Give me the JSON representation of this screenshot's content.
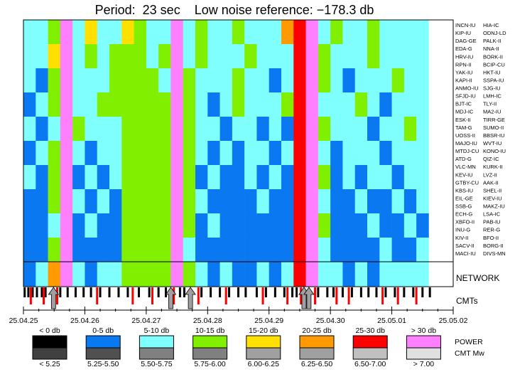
{
  "chart_data": {
    "type": "heatmap",
    "title": "Period:  23 sec    Low noise reference: −178.3 db",
    "stations_left": [
      "INCN-IU",
      "KIP-IU",
      "DAG-GE",
      "EDA-G",
      "HRV-IU",
      "RPN-II",
      "YAK-IU",
      "KAPI-II",
      "ANMO-IU",
      "SFJD-IU",
      "BJT-IC",
      "MDJ-IC",
      "ESK-II",
      "TAM-G",
      "UOSS-II",
      "MAJO-IU",
      "MTDJ-CU",
      "ATD-G",
      "VLC-MN",
      "KEV-IU",
      "GTBY-CU",
      "KBS-IU",
      "EIL-GE",
      "SSB-G",
      "ECH-G",
      "XBFO-II",
      "INU-G",
      "KIV-II",
      "SACV-II",
      "MACI-IU"
    ],
    "stations_right": [
      "HIA-IC",
      "ODNJ-LD",
      "PALK-II",
      "NNA-II",
      "BORK-II",
      "BCIP-CU",
      "HKT-IU",
      "SSPA-IU",
      "SJG-IU",
      "LMH-IC",
      "TLY-II",
      "MA2-IU",
      "TIRR-GE",
      "SUMO-II",
      "BBSR-IU",
      "WVT-IU",
      "KONO-IU",
      "QIZ-IC",
      "KURK-II",
      "LVZ-II",
      "AAK-II",
      "SHEL-II",
      "KIEV-IU",
      "MAKZ-IU",
      "LSA-IC",
      "PAB-IU",
      "RER-G",
      "BFO-II",
      "BORG-II",
      "DIVS-MN"
    ],
    "x": [
      25,
      25.2,
      25.4,
      25.6,
      25.8,
      26,
      26.2,
      26.4,
      26.6,
      26.8,
      27,
      27.2,
      27.4,
      27.6,
      27.8,
      28,
      28.2,
      28.4,
      28.6,
      28.8,
      29,
      29.2,
      29.4,
      29.6,
      29.8,
      30,
      30.2,
      30.4,
      30.6,
      30.8,
      31,
      31.2,
      31.4
    ],
    "rows": [
      [
        8,
        7,
        12,
        32,
        8,
        16,
        7,
        8,
        17,
        12,
        8,
        7,
        33,
        8,
        14,
        8,
        7,
        13,
        8,
        7,
        8,
        22,
        28,
        34,
        8,
        12,
        7,
        8,
        13,
        8,
        7,
        8,
        8
      ],
      [
        7,
        8,
        16,
        34,
        9,
        12,
        8,
        13,
        14,
        13,
        8,
        12,
        32,
        8,
        12,
        8,
        7,
        8,
        12,
        8,
        7,
        7,
        27,
        33,
        14,
        8,
        8,
        7,
        12,
        8,
        8,
        7,
        8
      ],
      [
        8,
        3,
        12,
        31,
        8,
        8,
        7,
        12,
        13,
        12,
        13,
        7,
        31,
        13,
        8,
        7,
        8,
        12,
        7,
        8,
        4,
        8,
        26,
        34,
        12,
        8,
        3,
        8,
        8,
        7,
        12,
        8,
        7
      ],
      [
        3,
        8,
        13,
        33,
        7,
        8,
        13,
        12,
        12,
        13,
        14,
        12,
        34,
        12,
        8,
        3,
        8,
        13,
        8,
        7,
        8,
        12,
        28,
        32,
        8,
        7,
        8,
        12,
        7,
        4,
        8,
        8,
        7
      ],
      [
        7,
        3,
        8,
        32,
        13,
        8,
        7,
        8,
        12,
        13,
        12,
        13,
        33,
        12,
        8,
        7,
        3,
        8,
        8,
        3,
        8,
        4,
        27,
        31,
        13,
        8,
        8,
        7,
        3,
        8,
        7,
        12,
        8
      ],
      [
        3,
        7,
        12,
        34,
        8,
        3,
        8,
        7,
        13,
        12,
        12,
        11,
        32,
        13,
        8,
        3,
        8,
        3,
        7,
        8,
        3,
        8,
        26,
        33,
        8,
        3,
        7,
        8,
        8,
        3,
        8,
        7,
        8
      ],
      [
        8,
        3,
        13,
        33,
        4,
        8,
        3,
        8,
        12,
        13,
        13,
        12,
        31,
        12,
        3,
        8,
        4,
        3,
        8,
        3,
        7,
        3,
        28,
        34,
        12,
        3,
        8,
        3,
        7,
        8,
        3,
        8,
        7
      ],
      [
        3,
        4,
        12,
        32,
        8,
        3,
        7,
        3,
        12,
        12,
        13,
        12,
        34,
        11,
        7,
        3,
        3,
        4,
        3,
        8,
        3,
        4,
        27,
        33,
        8,
        3,
        3,
        8,
        4,
        3,
        8,
        3,
        8
      ],
      [
        4,
        3,
        8,
        31,
        3,
        8,
        3,
        4,
        11,
        12,
        12,
        13,
        33,
        12,
        3,
        8,
        3,
        3,
        4,
        3,
        3,
        3,
        26,
        32,
        12,
        4,
        3,
        3,
        8,
        3,
        3,
        8,
        3
      ],
      [
        3,
        4,
        13,
        33,
        3,
        3,
        4,
        3,
        12,
        12,
        13,
        12,
        32,
        8,
        3,
        3,
        4,
        3,
        3,
        3,
        4,
        3,
        27,
        31,
        8,
        3,
        3,
        4,
        3,
        8,
        3,
        3,
        8
      ]
    ],
    "network": [
      3,
      8,
      22,
      32,
      8,
      3,
      8,
      8,
      12,
      12,
      12,
      13,
      31,
      12,
      8,
      3,
      8,
      3,
      3,
      8,
      3,
      8,
      27,
      33,
      8,
      8,
      3,
      8,
      3,
      8,
      8,
      8,
      8
    ],
    "network_label": "NETWORK",
    "cmt_label": "CMTs",
    "cmt_black": [
      25.02,
      25.08,
      25.15,
      25.22,
      25.3,
      25.36,
      25.6,
      25.72,
      25.85,
      25.98,
      26.1,
      26.25,
      26.4,
      26.55,
      26.7,
      26.88,
      27.05,
      27.2,
      27.32,
      27.55,
      27.62,
      27.9,
      28.05,
      28.2,
      28.35,
      28.5,
      28.62,
      28.8,
      28.95,
      29.1,
      29.25,
      29.38,
      29.45,
      29.8,
      29.95,
      30.05,
      30.2,
      30.35,
      30.5,
      30.62,
      30.75,
      30.9,
      31.05,
      31.2,
      31.35,
      31.5,
      31.62
    ],
    "cmt_red": [
      25.12,
      25.33,
      25.55,
      26.2,
      26.78,
      27.1,
      27.45,
      27.85,
      28.3,
      28.9,
      29.3,
      29.52,
      29.75,
      30.1,
      30.3,
      30.85,
      31.1,
      31.4
    ],
    "arrows": [
      25.49,
      27.4,
      27.72,
      29.57,
      29.65
    ],
    "xlim": [
      25,
      32
    ],
    "xticks": [
      {
        "value": 25,
        "label": "25.04.25"
      },
      {
        "value": 26,
        "label": "25.04.26"
      },
      {
        "value": 27,
        "label": "25.04.27"
      },
      {
        "value": 28,
        "label": "25.04.28"
      },
      {
        "value": 29,
        "label": "25.04.29"
      },
      {
        "value": 30,
        "label": "25.04.30"
      },
      {
        "value": 31,
        "label": "25.05.01"
      },
      {
        "value": 32,
        "label": "25.05.02"
      }
    ],
    "color_edges": [
      0,
      5,
      10,
      15,
      20,
      25,
      30
    ],
    "colors": [
      "#000000",
      "#0a78f0",
      "#80ffff",
      "#80f000",
      "#ffe000",
      "#ff9a00",
      "#ff0000",
      "#ff80ff"
    ],
    "cmt_colors": [
      "#404040",
      "#505050",
      "#808080",
      "#808080",
      "#a0a0a0",
      "#a0a0a0",
      "#c0c0c0",
      "#e0e0e0"
    ],
    "power_labels": [
      "< 0 db",
      "0-5 db",
      "5-10 db",
      "10-15 db",
      "15-20 db",
      "20-25 db",
      "25-30 db",
      "> 30 db"
    ],
    "mw_labels": [
      "< 5.25",
      "5.25-5.50",
      "5.50-5.75",
      "5.75-6.00",
      "6.00-6.25",
      "6.25-6.50",
      "6.50-7.00",
      "> 7.00"
    ],
    "power_label": "POWER",
    "mw_label": "CMT Mw"
  }
}
